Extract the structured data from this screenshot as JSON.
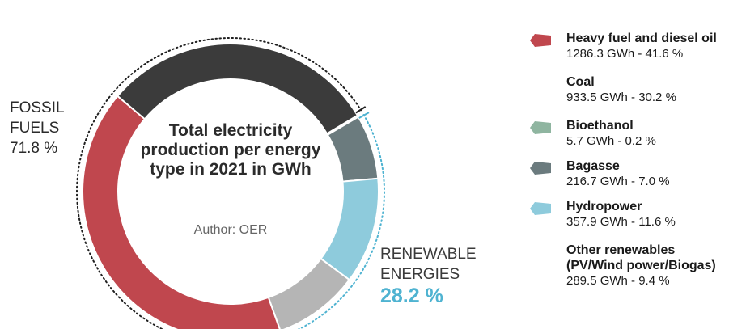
{
  "chart_data": {
    "type": "pie",
    "title": "Total electricity production per energy type in 2021 in GWh",
    "author": "Author: OER",
    "categories": [
      "Heavy fuel and diesel oil",
      "Coal",
      "Bioethanol",
      "Bagasse",
      "Hydropower",
      "Other renewables (PV/Wind power/Biogas)"
    ],
    "values": [
      1286.3,
      933.5,
      5.7,
      216.7,
      357.9,
      289.5
    ],
    "value_labels": [
      "1286.3 GWh - 41.6 %",
      "933.5 GWh - 30.2 %",
      "5.7 GWh - 0.2 %",
      "216.7 GWh - 7.0 %",
      "357.9 GWh - 11.6 %",
      "289.5 GWh - 9.4 %"
    ],
    "percentages": [
      41.6,
      30.2,
      0.2,
      7.0,
      11.6,
      9.4
    ],
    "colors": [
      "#c0474e",
      "#3b3b3b",
      "#8fb5a0",
      "#6b7b7e",
      "#8ecbdc",
      "#b5b5b5"
    ],
    "legend_placement": "right",
    "groups": [
      {
        "label_line1": "FOSSIL",
        "label_line2": "FUELS",
        "percent": "71.8 %",
        "color": "#2a2a2a"
      },
      {
        "label_line1": "RENEWABLE",
        "label_line2": "ENERGIES",
        "percent": "28.2 %",
        "color": "#4fb3d1"
      }
    ]
  },
  "title_lines": [
    "Total electricity",
    "production per energy",
    "type in 2021 in GWh"
  ],
  "legend": [
    {
      "name_lines": [
        "Heavy fuel and diesel oil"
      ],
      "value": "1286.3 GWh - 41.6 %",
      "show_swatch": true
    },
    {
      "name_lines": [
        "Coal"
      ],
      "value": "933.5 GWh - 30.2 %",
      "show_swatch": false
    },
    {
      "name_lines": [
        "Bioethanol"
      ],
      "value": "5.7 GWh - 0.2 %",
      "show_swatch": true
    },
    {
      "name_lines": [
        "Bagasse"
      ],
      "value": "216.7 GWh - 7.0 %",
      "show_swatch": true
    },
    {
      "name_lines": [
        "Hydropower"
      ],
      "value": "357.9 GWh - 11.6 %",
      "show_swatch": true
    },
    {
      "name_lines": [
        "Other renewables",
        "(PV/Wind power/Biogas)"
      ],
      "value": "289.5 GWh - 9.4 %",
      "show_swatch": false
    }
  ]
}
